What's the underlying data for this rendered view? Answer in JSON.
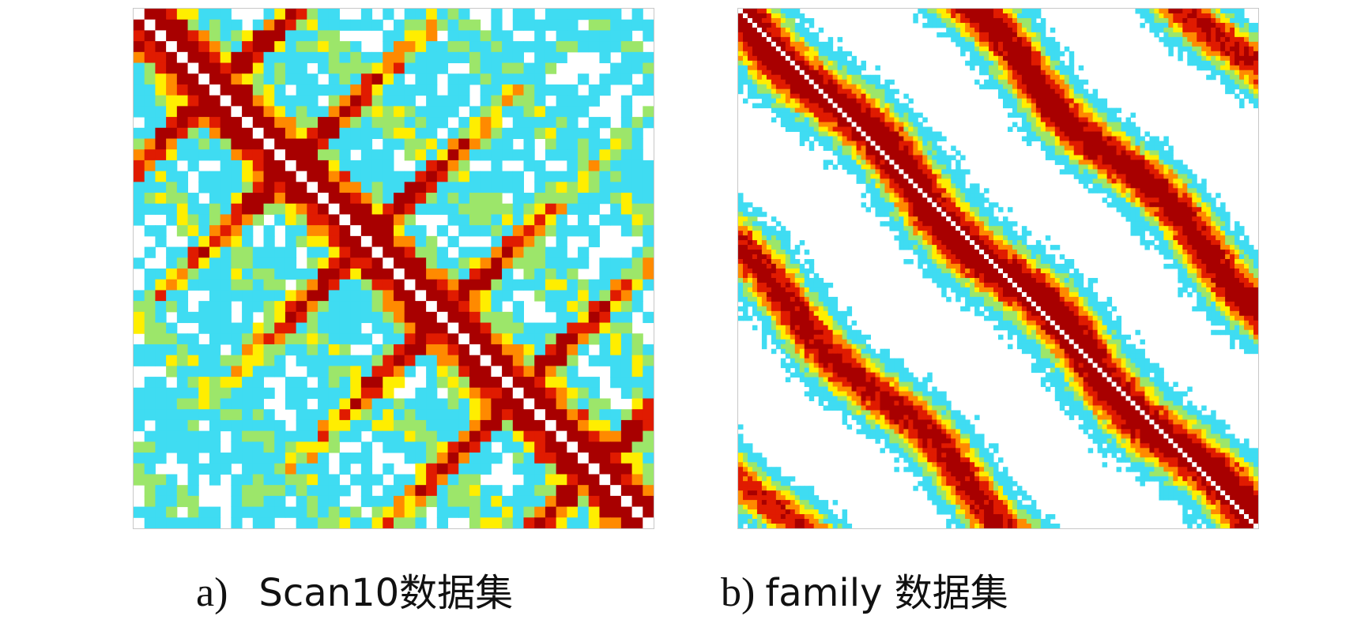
{
  "figure": {
    "panels": [
      {
        "id": "a",
        "caption_label": "a)",
        "caption_name": "Scan10数据集",
        "matrix_kind": "self-similarity heatmap",
        "grid_cells": 48,
        "colormap": "jet",
        "diagonal_color": "#ffffff"
      },
      {
        "id": "b",
        "caption_label": "b)",
        "caption_name": "family 数据集",
        "matrix_kind": "self-similarity heatmap",
        "grid_cells": 110,
        "colormap": "jet",
        "diagonal_color": "#ffffff"
      }
    ],
    "colors": {
      "dark_red": "#a80000",
      "red": "#e01b00",
      "orange": "#ff8a00",
      "yellow": "#ffee00",
      "green": "#9ce66a",
      "cyan": "#3fdcf2",
      "background": "#ffffff"
    }
  }
}
